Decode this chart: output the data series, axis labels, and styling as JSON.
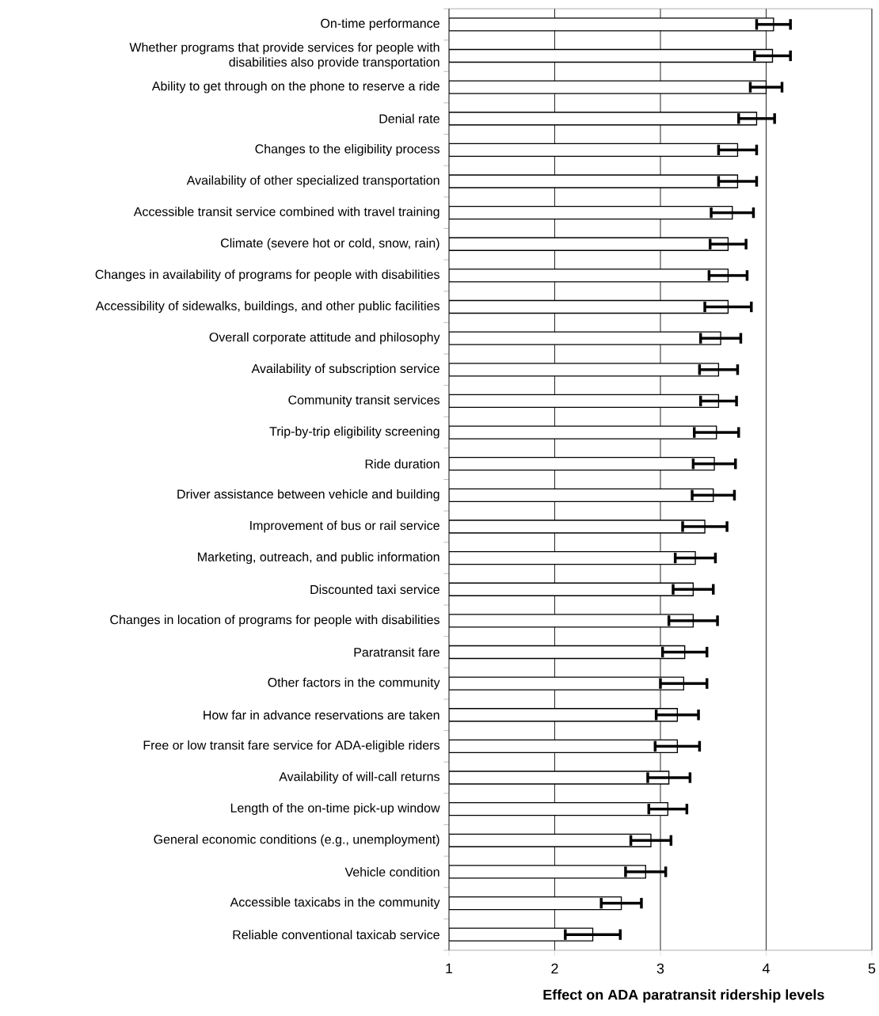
{
  "chart_data": {
    "type": "bar",
    "orientation": "horizontal",
    "xlabel": "Effect on ADA paratransit ridership levels",
    "categories": [
      "On-time performance",
      "Whether programs that provide services for people with disabilities also provide transportation",
      "Ability to get through on the phone to reserve a ride",
      "Denial rate",
      "Changes to the eligibility process",
      "Availability of other specialized transportation",
      "Accessible transit service combined with travel training",
      "Climate (severe hot or cold, snow, rain)",
      "Changes in availability of programs for people with disabilities",
      "Accessibility of sidewalks, buildings, and other public facilities",
      "Overall corporate attitude and philosophy",
      "Availability of subscription service",
      "Community transit services",
      "Trip-by-trip eligibility screening",
      "Ride duration",
      "Driver assistance between vehicle and building",
      "Improvement of bus or rail service",
      "Marketing, outreach, and public information",
      "Discounted taxi service",
      "Changes in location of programs for people with disabilities",
      "Paratransit fare",
      "Other factors in the community",
      "How far in advance reservations are taken",
      "Free or low transit fare service for ADA-eligible riders",
      "Availability of will-call returns",
      "Length of the on-time pick-up window",
      "General economic conditions (e.g., unemployment)",
      "Vehicle condition",
      "Accessible taxicabs in the community",
      "Reliable conventional taxicab service"
    ],
    "values": [
      4.07,
      4.06,
      4.0,
      3.91,
      3.73,
      3.73,
      3.68,
      3.64,
      3.64,
      3.64,
      3.57,
      3.55,
      3.55,
      3.53,
      3.51,
      3.5,
      3.42,
      3.33,
      3.31,
      3.31,
      3.23,
      3.22,
      3.16,
      3.16,
      3.08,
      3.07,
      2.91,
      2.86,
      2.63,
      2.36
    ],
    "errors": [
      0.16,
      0.17,
      0.15,
      0.17,
      0.18,
      0.18,
      0.2,
      0.17,
      0.18,
      0.22,
      0.19,
      0.18,
      0.17,
      0.21,
      0.2,
      0.2,
      0.21,
      0.19,
      0.19,
      0.23,
      0.21,
      0.22,
      0.2,
      0.21,
      0.2,
      0.18,
      0.19,
      0.19,
      0.19,
      0.26
    ],
    "color": "#ffffff",
    "xlim": [
      1,
      5
    ],
    "xticks": [
      1,
      2,
      3,
      4,
      5
    ],
    "grid": "x"
  }
}
